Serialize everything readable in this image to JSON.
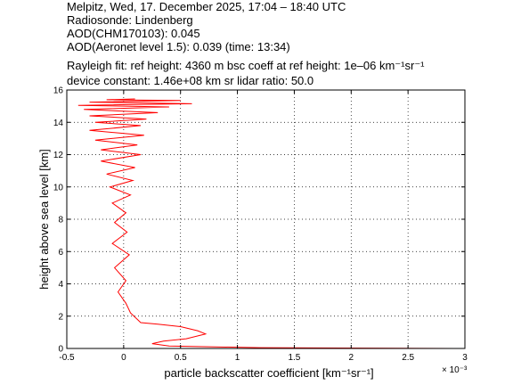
{
  "header": {
    "line1": "Melpitz, Wed, 17. December 2025, 17:04 – 18:40 UTC",
    "line2": "Radiosonde: Lindenberg",
    "line3": "AOD(CHM170103): 0.045",
    "line4": "AOD(Aeronet level 1.5): 0.039   (time: 13:34)",
    "line5": "Rayleigh fit:     ref height: 4360 m     bsc coeff at ref height: 1e–06 km⁻¹sr⁻¹",
    "line6": "device constant: 1.46e+08 km sr     lidar ratio: 50.0"
  },
  "chart_data": {
    "type": "line",
    "xlabel": "particle backscatter coefficient [km⁻¹sr⁻¹]",
    "ylabel": "height above sea level [km]",
    "x_multiplier": "× 10⁻³",
    "xlim": [
      -0.5,
      3
    ],
    "ylim": [
      0,
      16
    ],
    "xticks": [
      -0.5,
      0,
      0.5,
      1,
      1.5,
      2,
      2.5,
      3
    ],
    "xtick_labels": [
      "-0.5",
      "0",
      "0.5",
      "1",
      "1.5",
      "2",
      "2.5",
      "3"
    ],
    "yticks": [
      0,
      2,
      4,
      6,
      8,
      10,
      12,
      14,
      16
    ],
    "ytick_labels": [
      "0",
      "2",
      "4",
      "6",
      "8",
      "10",
      "12",
      "14",
      "16"
    ],
    "grid": true,
    "series": [
      {
        "color": "#ff0000",
        "x": [
          3.0,
          1.2,
          0.4,
          0.25,
          0.35,
          0.55,
          0.72,
          0.65,
          0.5,
          0.3,
          0.15,
          0.12,
          0.06,
          0.02,
          -0.05,
          0.02,
          -0.08,
          0.05,
          -0.1,
          0.03,
          -0.08,
          0.02,
          -0.1,
          0.06,
          -0.12,
          0.08,
          -0.15,
          0.1,
          -0.2,
          0.15,
          -0.2,
          0.12,
          -0.25,
          0.18,
          -0.3,
          0.15,
          -0.25,
          0.2,
          -0.3,
          0.3,
          -0.35,
          0.4,
          -0.4,
          0.6,
          -0.3,
          0.5,
          -0.15,
          0.1
        ],
        "y": [
          0.0,
          0.05,
          0.15,
          0.3,
          0.45,
          0.6,
          0.9,
          1.1,
          1.35,
          1.5,
          1.6,
          1.8,
          2.2,
          2.8,
          3.5,
          4.2,
          5.0,
          5.8,
          6.5,
          7.2,
          7.8,
          8.4,
          9.0,
          9.5,
          10.0,
          10.4,
          10.8,
          11.2,
          11.6,
          12.0,
          12.3,
          12.6,
          12.9,
          13.2,
          13.5,
          13.8,
          14.0,
          14.2,
          14.4,
          14.6,
          14.8,
          14.95,
          15.05,
          15.15,
          15.25,
          15.35,
          15.4,
          15.45
        ]
      }
    ]
  }
}
